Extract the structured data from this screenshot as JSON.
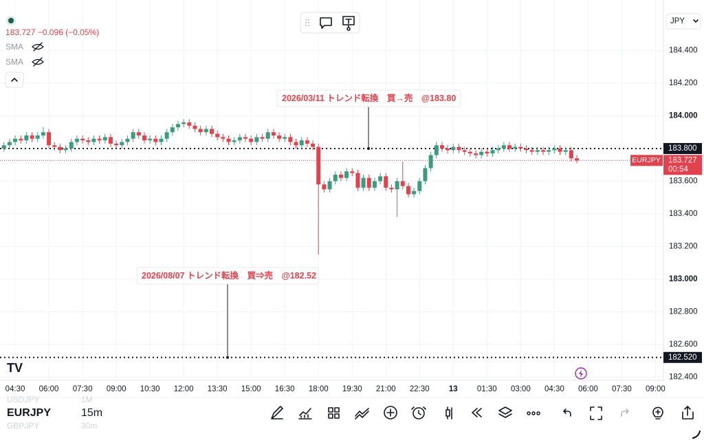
{
  "top_bar": {
    "currency": "JPY"
  },
  "legend": {
    "price": "183.727 −0.096 (−0.05%)",
    "indicators": [
      "SMA",
      "SMA"
    ]
  },
  "chart_data": {
    "type": "candlestick",
    "up_color": "#3f9b7f",
    "down_color": "#e0434d",
    "open": [
      183.8,
      183.82,
      183.84,
      183.86,
      183.85,
      183.88,
      183.86,
      183.88,
      183.9,
      183.82,
      183.81,
      183.79,
      183.8,
      183.84,
      183.86,
      183.85,
      183.84,
      183.86,
      183.85,
      183.87,
      183.83,
      183.82,
      183.84,
      183.86,
      183.9,
      183.88,
      183.85,
      183.86,
      183.84,
      183.86,
      183.9,
      183.93,
      183.95,
      183.96,
      183.94,
      183.92,
      183.9,
      183.92,
      183.89,
      183.87,
      183.86,
      183.84,
      183.85,
      183.87,
      183.86,
      183.84,
      183.87,
      183.86,
      183.9,
      183.88,
      183.86,
      183.87,
      183.84,
      183.82,
      183.85,
      183.83,
      183.81,
      183.58,
      183.55,
      183.6,
      183.64,
      183.62,
      183.66,
      183.65,
      183.56,
      183.62,
      183.56,
      183.6,
      183.63,
      183.56,
      183.55,
      183.6,
      183.57,
      183.52,
      183.54,
      183.6,
      183.68,
      183.76,
      183.82,
      183.8,
      183.79,
      183.81,
      183.79,
      183.78,
      183.77,
      183.76,
      183.78,
      183.77,
      183.79,
      183.8,
      183.82,
      183.8,
      183.81,
      183.8,
      183.79,
      183.78,
      183.79,
      183.78,
      183.79,
      183.8,
      183.78,
      183.79,
      183.74
    ],
    "high": [
      183.84,
      183.86,
      183.88,
      183.88,
      183.9,
      183.9,
      183.9,
      183.93,
      183.92,
      183.84,
      183.83,
      183.82,
      183.86,
      183.88,
      183.88,
      183.87,
      183.88,
      183.88,
      183.89,
      183.89,
      183.85,
      183.86,
      183.88,
      183.92,
      183.92,
      183.9,
      183.88,
      183.88,
      183.88,
      183.92,
      183.95,
      183.97,
      183.98,
      183.98,
      183.96,
      183.94,
      183.94,
      183.94,
      183.91,
      183.89,
      183.88,
      183.87,
      183.89,
      183.89,
      183.88,
      183.89,
      183.89,
      183.92,
      183.92,
      183.9,
      183.89,
      183.89,
      183.86,
      183.87,
      183.87,
      183.85,
      183.83,
      183.6,
      183.62,
      183.66,
      183.66,
      183.68,
      183.68,
      183.67,
      183.64,
      183.64,
      183.62,
      183.65,
      183.65,
      183.58,
      183.62,
      183.72,
      183.59,
      183.56,
      183.62,
      183.7,
      183.78,
      183.84,
      183.84,
      183.82,
      183.83,
      183.83,
      183.81,
      183.8,
      183.79,
      183.8,
      183.8,
      183.81,
      183.82,
      183.84,
      183.84,
      183.83,
      183.83,
      183.82,
      183.81,
      183.81,
      183.81,
      183.81,
      183.82,
      183.82,
      183.81,
      183.81,
      183.76
    ],
    "low": [
      183.78,
      183.8,
      183.82,
      183.83,
      183.83,
      183.84,
      183.84,
      183.86,
      183.8,
      183.79,
      183.77,
      183.77,
      183.78,
      183.82,
      183.83,
      183.82,
      183.82,
      183.83,
      183.83,
      183.81,
      183.8,
      183.8,
      183.82,
      183.84,
      183.86,
      183.83,
      183.83,
      183.82,
      183.82,
      183.84,
      183.88,
      183.91,
      183.93,
      183.92,
      183.9,
      183.88,
      183.88,
      183.87,
      183.85,
      183.84,
      183.82,
      183.82,
      183.83,
      183.84,
      183.82,
      183.82,
      183.84,
      183.84,
      183.86,
      183.84,
      183.84,
      183.82,
      183.8,
      183.8,
      183.81,
      183.79,
      183.15,
      183.53,
      183.53,
      183.58,
      183.6,
      183.6,
      183.63,
      183.54,
      183.54,
      183.54,
      183.54,
      183.58,
      183.54,
      183.53,
      183.38,
      183.55,
      183.5,
      183.5,
      183.52,
      183.58,
      183.66,
      183.74,
      183.78,
      183.77,
      183.77,
      183.77,
      183.76,
      183.75,
      183.74,
      183.74,
      183.75,
      183.75,
      183.77,
      183.78,
      183.78,
      183.78,
      183.78,
      183.77,
      183.76,
      183.76,
      183.76,
      183.76,
      183.77,
      183.76,
      183.76,
      183.72,
      183.71
    ],
    "close": [
      183.82,
      183.84,
      183.86,
      183.85,
      183.88,
      183.86,
      183.88,
      183.9,
      183.82,
      183.81,
      183.79,
      183.8,
      183.84,
      183.86,
      183.85,
      183.84,
      183.86,
      183.85,
      183.87,
      183.83,
      183.82,
      183.84,
      183.86,
      183.9,
      183.88,
      183.85,
      183.86,
      183.84,
      183.86,
      183.9,
      183.93,
      183.95,
      183.96,
      183.94,
      183.92,
      183.9,
      183.92,
      183.89,
      183.87,
      183.86,
      183.84,
      183.85,
      183.87,
      183.86,
      183.84,
      183.87,
      183.86,
      183.9,
      183.88,
      183.86,
      183.87,
      183.84,
      183.82,
      183.85,
      183.83,
      183.81,
      183.58,
      183.55,
      183.6,
      183.64,
      183.62,
      183.66,
      183.65,
      183.56,
      183.62,
      183.56,
      183.6,
      183.63,
      183.56,
      183.55,
      183.6,
      183.57,
      183.52,
      183.54,
      183.6,
      183.68,
      183.76,
      183.82,
      183.8,
      183.79,
      183.81,
      183.79,
      183.78,
      183.77,
      183.76,
      183.78,
      183.77,
      183.79,
      183.8,
      183.82,
      183.8,
      183.81,
      183.8,
      183.79,
      183.78,
      183.79,
      183.78,
      183.79,
      183.8,
      183.78,
      183.79,
      183.74,
      183.727
    ],
    "ylim": [
      182.38,
      184.71
    ],
    "yticks": [
      {
        "value": 184.4,
        "label": "184.400"
      },
      {
        "value": 184.2,
        "label": "184.200"
      },
      {
        "value": 184,
        "label": "184.000"
      },
      {
        "value": 183.6,
        "label": "183.600"
      },
      {
        "value": 183.4,
        "label": "183.400"
      },
      {
        "value": 183.2,
        "label": "183.200"
      },
      {
        "value": 183,
        "label": "183.000"
      },
      {
        "value": 182.8,
        "label": "182.800"
      },
      {
        "value": 182.6,
        "label": "182.600"
      },
      {
        "value": 182.4,
        "label": "182.400"
      }
    ],
    "xticks": [
      "04:30",
      "06:00",
      "07:30",
      "09:00",
      "10:30",
      "12:00",
      "13:30",
      "15:00",
      "16:30",
      "18:00",
      "19:30",
      "21:00",
      "22:30",
      "13",
      "01:30",
      "03:00",
      "04:30",
      "06:00",
      "07:30",
      "09:00"
    ],
    "grid": true,
    "hlines": [
      {
        "value": 183.8,
        "label": "183.800"
      },
      {
        "value": 182.52,
        "label": "182.520"
      }
    ],
    "last_price": {
      "value": 183.727,
      "label": "183.727",
      "symbol": "EURJPY",
      "countdown": "00:54"
    },
    "annotations": [
      {
        "text": "2026/03/11 トレンド転換　買→売　@183.80",
        "value": 183.8
      },
      {
        "text": "2026/08/07 トレンド転換　買⇒売　@182.52",
        "value": 182.52
      }
    ]
  },
  "bottom_bar": {
    "symbols": [
      {
        "symbol": "USDJPY",
        "interval": "1M"
      },
      {
        "symbol": "EURJPY",
        "interval": "15m"
      },
      {
        "symbol": "GBPJPY",
        "interval": "30m"
      }
    ]
  }
}
